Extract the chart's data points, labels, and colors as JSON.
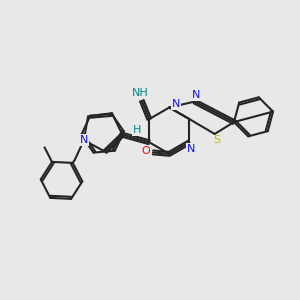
{
  "bg_color": "#e8e8e8",
  "bond_color": "#252525",
  "bond_lw": 1.5,
  "dbl_off": 0.055,
  "atom_colors": {
    "N": "#1010ee",
    "O": "#ee1100",
    "S": "#bbbb00",
    "teal": "#008888",
    "C": "#252525"
  },
  "fs": 8,
  "figsize": [
    3.0,
    3.0
  ],
  "dpi": 100,
  "xlim": [
    0,
    10
  ],
  "ylim": [
    0,
    10
  ]
}
